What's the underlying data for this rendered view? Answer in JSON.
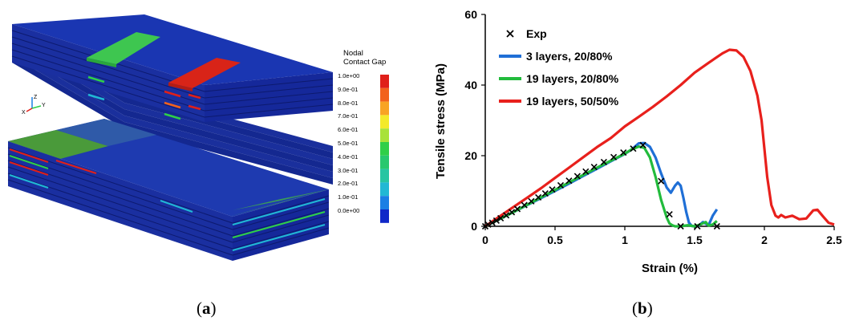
{
  "panel_a": {
    "caption_letter": "a",
    "legend": {
      "title_line1": "Nodal",
      "title_line2": "Contact Gap",
      "labels": [
        "1.0e+00",
        "9.0e-01",
        "8.0e-01",
        "7.0e-01",
        "6.0e-01",
        "5.0e-01",
        "4.0e-01",
        "3.0e-01",
        "2.0e-01",
        "1.0e-01",
        "0.0e+00"
      ],
      "colors": [
        "#e0201a",
        "#f2621c",
        "#f8a424",
        "#f4ea2a",
        "#a8e23a",
        "#2fcf48",
        "#28c86e",
        "#26c5a2",
        "#21b8d4",
        "#1b7fe4",
        "#1028c8"
      ]
    },
    "axis_triad": {
      "z": "Z",
      "y": "Y",
      "x": "X"
    }
  },
  "panel_b": {
    "caption_letter": "b"
  },
  "chart_data": {
    "type": "line",
    "title": "",
    "xlabel": "Strain (%)",
    "ylabel": "Tensile stress (MPa)",
    "xlim": [
      0,
      2.5
    ],
    "ylim": [
      0,
      60
    ],
    "xticks": [
      0,
      0.5,
      1,
      1.5,
      2,
      2.5
    ],
    "xtick_labels": [
      "0",
      "0.5",
      "1",
      "1.5",
      "2",
      "2.5"
    ],
    "yticks": [
      0,
      20,
      40,
      60
    ],
    "ytick_labels": [
      "0",
      "20",
      "40",
      "60"
    ],
    "grid": false,
    "legend_position": "top-left",
    "series": [
      {
        "name": "Exp",
        "style": "marker-x",
        "color": "#000000",
        "x": [
          0,
          0.02,
          0.05,
          0.08,
          0.11,
          0.15,
          0.19,
          0.23,
          0.28,
          0.33,
          0.38,
          0.43,
          0.48,
          0.54,
          0.6,
          0.66,
          0.72,
          0.78,
          0.85,
          0.92,
          0.99,
          1.06,
          1.13,
          1.26,
          1.32,
          1.4,
          1.52,
          1.66
        ],
        "y": [
          0,
          0.5,
          1,
          1.6,
          2.3,
          3.1,
          4,
          4.9,
          6,
          7.1,
          8.2,
          9.3,
          10.4,
          11.6,
          12.9,
          14.2,
          15.5,
          16.8,
          18.2,
          19.6,
          20.9,
          22,
          23,
          12.8,
          3.4,
          0,
          0,
          0
        ]
      },
      {
        "name": "3 layers, 20/80%",
        "style": "line",
        "color": "#1f6fd6",
        "x": [
          0,
          0.1,
          0.2,
          0.3,
          0.4,
          0.5,
          0.6,
          0.7,
          0.8,
          0.9,
          1.0,
          1.05,
          1.1,
          1.14,
          1.18,
          1.22,
          1.26,
          1.3,
          1.33,
          1.36,
          1.38,
          1.4,
          1.42,
          1.44,
          1.46,
          1.48,
          1.5,
          1.53,
          1.56,
          1.6,
          1.63,
          1.66
        ],
        "y": [
          0,
          2,
          4,
          6,
          8,
          10,
          12.1,
          14.2,
          16.3,
          18.4,
          20.5,
          21.8,
          23.5,
          23.6,
          22.5,
          19.5,
          15,
          11,
          9.5,
          11.5,
          12.4,
          11.5,
          8,
          4,
          1,
          0.1,
          0,
          0.2,
          1.2,
          0.3,
          3,
          4.8
        ]
      },
      {
        "name": "19 layers, 20/80%",
        "style": "line",
        "color": "#22bb3c",
        "x": [
          0,
          0.1,
          0.2,
          0.3,
          0.4,
          0.5,
          0.6,
          0.7,
          0.8,
          0.9,
          1.0,
          1.05,
          1.1,
          1.14,
          1.18,
          1.22,
          1.26,
          1.3,
          1.32,
          1.34,
          1.36,
          1.4,
          1.45,
          1.5,
          1.54,
          1.58,
          1.6,
          1.63,
          1.66
        ],
        "y": [
          0,
          2,
          4,
          6.1,
          8.2,
          10.3,
          12.4,
          14.5,
          16.6,
          18.6,
          20.6,
          21.8,
          22.6,
          22.2,
          19.5,
          14,
          7.5,
          2.5,
          0.8,
          0.3,
          0,
          0,
          0.3,
          0,
          0.5,
          1.2,
          0.2,
          0.5,
          1.5
        ]
      },
      {
        "name": "19 layers, 50/50%",
        "style": "line",
        "color": "#e8201c",
        "x": [
          0,
          0.1,
          0.2,
          0.3,
          0.4,
          0.5,
          0.6,
          0.7,
          0.8,
          0.9,
          1.0,
          1.1,
          1.2,
          1.3,
          1.4,
          1.5,
          1.6,
          1.7,
          1.75,
          1.8,
          1.85,
          1.9,
          1.95,
          1.98,
          2.0,
          2.02,
          2.05,
          2.08,
          2.1,
          2.12,
          2.15,
          2.2,
          2.25,
          2.3,
          2.35,
          2.38,
          2.42,
          2.46,
          2.5
        ],
        "y": [
          0,
          2.7,
          5.4,
          8.1,
          10.8,
          13.7,
          16.6,
          19.5,
          22.4,
          25,
          28.3,
          31,
          33.8,
          36.8,
          40,
          43.5,
          46.3,
          49,
          50,
          49.8,
          48,
          44,
          37,
          30,
          22,
          14,
          6,
          3,
          2.5,
          3.2,
          2.5,
          3,
          2,
          2.2,
          4.5,
          4.7,
          2.8,
          1,
          0.5
        ]
      }
    ]
  }
}
